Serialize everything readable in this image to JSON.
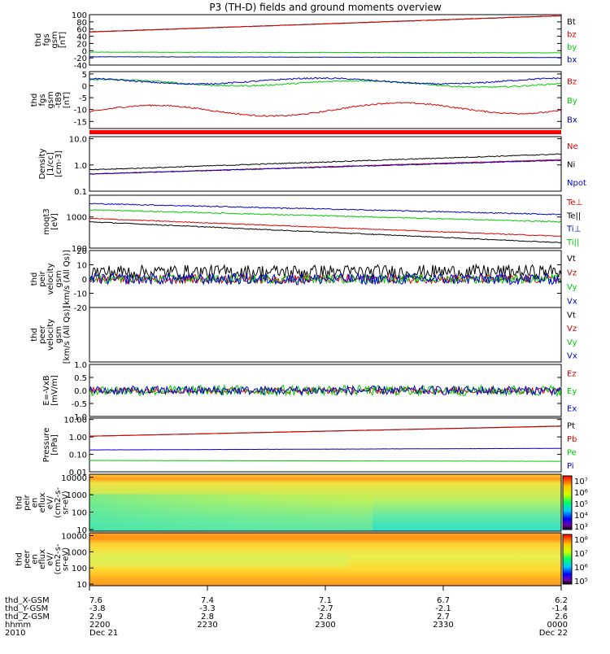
{
  "chart_data": {
    "type": "line",
    "title": "P3 (TH-D) fields and ground moments overview",
    "panels": [
      {
        "ylabel": [
          "thd",
          "fgs",
          "gsm",
          "[nT]"
        ],
        "yticks": [
          "100",
          "80",
          "60",
          "40",
          "20",
          "0",
          "-20",
          "-40"
        ],
        "ylim": [
          -40,
          100
        ],
        "scale": "linear",
        "series": [
          {
            "name": "Bt",
            "color": "#000000",
            "start": 52,
            "end": 97,
            "noise": 0.6
          },
          {
            "name": "bz",
            "color": "#dd0000",
            "start": 52,
            "end": 97,
            "noise": 0.6
          },
          {
            "name": "by",
            "color": "#00cc00",
            "start": -4,
            "end": -6,
            "noise": 0.4
          },
          {
            "name": "bx",
            "color": "#0000cc",
            "start": -17,
            "end": -19,
            "noise": 0.4
          }
        ]
      },
      {
        "ylabel": [
          "thd",
          "fgs",
          "gsm",
          "-t89",
          "[nT]"
        ],
        "yticks": [
          "5",
          "0",
          "-5",
          "-10",
          "-15"
        ],
        "ylim": [
          -18,
          6
        ],
        "scale": "linear",
        "series": [
          {
            "name": "Bz",
            "color": "#dd0000",
            "start": -11,
            "end": -9,
            "noise": 0.3
          },
          {
            "name": "By",
            "color": "#00cc00",
            "start": 1.5,
            "end": 0.5,
            "noise": 0.3
          },
          {
            "name": "Bx",
            "color": "#0000cc",
            "start": 2,
            "end": 2,
            "noise": 0.3
          }
        ]
      },
      {
        "ylabel": [
          "Density",
          "[1/cc]",
          "[cm-3]"
        ],
        "yticks": [
          "10.0",
          "1.0",
          "0.1"
        ],
        "ylim": [
          0.1,
          12
        ],
        "scale": "log",
        "series": [
          {
            "name": "Ne",
            "color": "#dd0000",
            "start": 0.45,
            "end": 1.6,
            "noise": 0.03
          },
          {
            "name": "Ni",
            "color": "#000000",
            "start": 0.65,
            "end": 2.6,
            "noise": 0.04
          },
          {
            "name": "Npot",
            "color": "#0000cc",
            "start": 0.45,
            "end": 1.5,
            "noise": 0.03
          }
        ]
      },
      {
        "ylabel": [
          "moqt3",
          "[eV]"
        ],
        "yticks": [
          "1000",
          "100"
        ],
        "ylim": [
          100,
          5000
        ],
        "scale": "log",
        "series": [
          {
            "name": "Te⊥",
            "color": "#dd0000",
            "start": 900,
            "end": 240,
            "noise": 0.03
          },
          {
            "name": "Te||",
            "color": "#000000",
            "start": 700,
            "end": 150,
            "noise": 0.03
          },
          {
            "name": "Ti⊥",
            "color": "#0000cc",
            "start": 2700,
            "end": 1200,
            "noise": 0.04
          },
          {
            "name": "Ti||",
            "color": "#00cc00",
            "start": 1700,
            "end": 700,
            "noise": 0.04
          }
        ]
      },
      {
        "ylabel": [
          "thd",
          "peir",
          "velocity",
          "gsm",
          "[km/s (All Qs)]"
        ],
        "yticks": [
          "20",
          "10",
          "0",
          "-10",
          "-20"
        ],
        "ylim": [
          -20,
          20
        ],
        "scale": "linear",
        "series": [
          {
            "name": "Vt",
            "color": "#000000",
            "start": 5,
            "end": 5,
            "noise": 5
          },
          {
            "name": "Vz",
            "color": "#dd0000",
            "start": 0,
            "end": 0,
            "noise": 3
          },
          {
            "name": "Vy",
            "color": "#00cc00",
            "start": 0,
            "end": 0,
            "noise": 3
          },
          {
            "name": "Vx",
            "color": "#0000cc",
            "start": 0,
            "end": 0,
            "noise": 4
          }
        ]
      },
      {
        "ylabel": [
          "thd",
          "peer",
          "velocity",
          "gsm",
          "[km/s (All Qs)]"
        ],
        "yticks": [],
        "ylim": [
          -20,
          20
        ],
        "scale": "linear",
        "series": [
          {
            "name": "Vt",
            "color": "#000000",
            "empty": true
          },
          {
            "name": "Vz",
            "color": "#dd0000",
            "empty": true
          },
          {
            "name": "Vy",
            "color": "#00cc00",
            "empty": true
          },
          {
            "name": "Vx",
            "color": "#0000cc",
            "empty": true
          }
        ]
      },
      {
        "ylabel": [
          "E=-VxB",
          "[mV/m]"
        ],
        "yticks": [
          "1.0",
          "0.5",
          "0.0",
          "-0.5",
          "-1.0"
        ],
        "ylim": [
          -1,
          1
        ],
        "scale": "linear",
        "series": [
          {
            "name": "Ez",
            "color": "#dd0000",
            "start": 0,
            "end": 0,
            "noise": 0.12
          },
          {
            "name": "Ey",
            "color": "#00cc00",
            "start": 0,
            "end": 0,
            "noise": 0.2
          },
          {
            "name": "Ex",
            "color": "#0000cc",
            "start": 0,
            "end": 0,
            "noise": 0.17
          }
        ]
      },
      {
        "ylabel": [
          "Pressure",
          "[nPa]"
        ],
        "yticks": [
          "10.00",
          "1.00",
          "0.10",
          "0.01"
        ],
        "ylim": [
          0.01,
          12
        ],
        "scale": "log",
        "series": [
          {
            "name": "Pt",
            "color": "#000000",
            "start": 1.1,
            "end": 4.2,
            "noise": 0.01
          },
          {
            "name": "Pb",
            "color": "#dd0000",
            "start": 1.1,
            "end": 4.1,
            "noise": 0.01
          },
          {
            "name": "Pe",
            "color": "#00cc00",
            "start": 0.045,
            "end": 0.04,
            "noise": 0.01
          },
          {
            "name": "Pi",
            "color": "#0000cc",
            "start": 0.18,
            "end": 0.22,
            "noise": 0.01
          }
        ]
      }
    ],
    "spectrograms": [
      {
        "ylabel": [
          "thd",
          "peir",
          "en",
          "eflux",
          "eV/",
          "(cm2-s-",
          "sr-eV)"
        ],
        "yticks": [
          "10000",
          "1000",
          "100",
          "10"
        ],
        "colorbar_ticks": [
          "10⁷",
          "10⁶",
          "10⁵",
          "10⁴",
          "10³"
        ]
      },
      {
        "ylabel": [
          "thd",
          "peer",
          "en",
          "eflux",
          "eV/",
          "(cm2-s-",
          "sr-eV)"
        ],
        "yticks": [
          "10000",
          "1000",
          "100",
          "10"
        ],
        "colorbar_ticks": [
          "10⁸",
          "10⁷",
          "10⁶",
          "10⁵"
        ]
      }
    ],
    "x_axis": {
      "row_labels": [
        "thd_X-GSM",
        "thd_Y-GSM",
        "thd_Z-GSM",
        "hhmm",
        "2010"
      ],
      "columns": [
        [
          "7.6",
          "-3.8",
          "2.9",
          "2200",
          "Dec 21"
        ],
        [
          "7.4",
          "-3.3",
          "2.8",
          "2230",
          ""
        ],
        [
          "7.1",
          "-2.7",
          "2.8",
          "2300",
          ""
        ],
        [
          "6.7",
          "-2.1",
          "2.7",
          "2330",
          ""
        ],
        [
          "6.2",
          "-1.4",
          "2.6",
          "0000",
          "Dec 22"
        ]
      ]
    }
  }
}
